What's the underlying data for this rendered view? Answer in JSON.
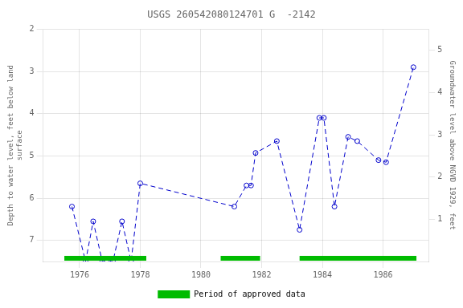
{
  "chart_data": {
    "type": "line",
    "title": "USGS 260542080124701 G  -2142",
    "x": [
      1975.75,
      1976.2,
      1976.45,
      1976.75,
      1977.1,
      1977.4,
      1977.7,
      1978.0,
      1981.1,
      1981.5,
      1981.65,
      1981.8,
      1982.5,
      1983.25,
      1983.9,
      1984.05,
      1984.4,
      1984.85,
      1985.15,
      1985.85,
      1986.1,
      1987.0
    ],
    "values": [
      6.2,
      7.5,
      6.55,
      7.5,
      7.5,
      6.55,
      7.5,
      5.65,
      6.2,
      5.7,
      5.7,
      4.93,
      4.65,
      6.75,
      4.1,
      4.1,
      6.2,
      4.55,
      4.65,
      5.1,
      5.15,
      2.9
    ],
    "color": "#0000cc",
    "line_style": "dashed",
    "marker": "open_circle",
    "xlim": [
      1974.8,
      1987.5
    ],
    "xticks": [
      1976,
      1978,
      1980,
      1982,
      1984,
      1986
    ],
    "ylabel": "Depth to water level, feet below land\nsurface",
    "ylim": [
      7.5,
      2.0
    ],
    "yticks": [
      2,
      3,
      4,
      5,
      6,
      7
    ],
    "y2label": "Groundwater level above NGVD 1929, feet",
    "y2lim": [
      0.0,
      5.5
    ],
    "y2ticks": [
      5,
      4,
      3,
      2,
      1
    ],
    "grid": true,
    "legend": "bottom",
    "approved_periods": {
      "name": "Period of approved data",
      "color": "#00bb00",
      "ranges": [
        [
          1975.5,
          1978.2
        ],
        [
          1980.65,
          1981.95
        ],
        [
          1983.25,
          1987.1
        ]
      ]
    }
  }
}
